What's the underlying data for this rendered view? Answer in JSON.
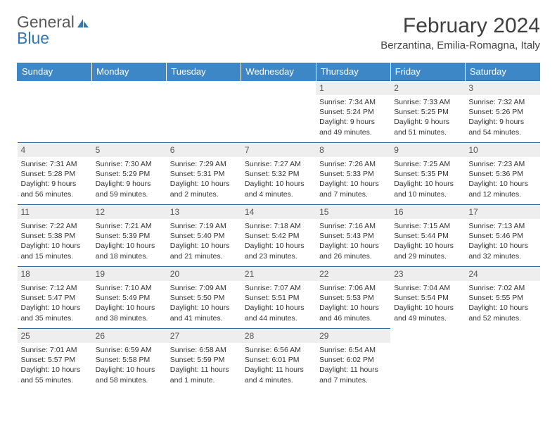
{
  "logo": {
    "text1": "General",
    "text2": "Blue"
  },
  "title": "February 2024",
  "location": "Berzantina, Emilia-Romagna, Italy",
  "colors": {
    "header_bg": "#3e87c6",
    "header_text": "#ffffff",
    "daynum_bg": "#eeeeee",
    "rule": "#2f6fa8",
    "logo_gray": "#595959",
    "logo_blue": "#2f77b9"
  },
  "weekdays": [
    "Sunday",
    "Monday",
    "Tuesday",
    "Wednesday",
    "Thursday",
    "Friday",
    "Saturday"
  ],
  "weeks": [
    [
      null,
      null,
      null,
      null,
      {
        "num": "1",
        "sunrise": "7:34 AM",
        "sunset": "5:24 PM",
        "daylight": "9 hours and 49 minutes."
      },
      {
        "num": "2",
        "sunrise": "7:33 AM",
        "sunset": "5:25 PM",
        "daylight": "9 hours and 51 minutes."
      },
      {
        "num": "3",
        "sunrise": "7:32 AM",
        "sunset": "5:26 PM",
        "daylight": "9 hours and 54 minutes."
      }
    ],
    [
      {
        "num": "4",
        "sunrise": "7:31 AM",
        "sunset": "5:28 PM",
        "daylight": "9 hours and 56 minutes."
      },
      {
        "num": "5",
        "sunrise": "7:30 AM",
        "sunset": "5:29 PM",
        "daylight": "9 hours and 59 minutes."
      },
      {
        "num": "6",
        "sunrise": "7:29 AM",
        "sunset": "5:31 PM",
        "daylight": "10 hours and 2 minutes."
      },
      {
        "num": "7",
        "sunrise": "7:27 AM",
        "sunset": "5:32 PM",
        "daylight": "10 hours and 4 minutes."
      },
      {
        "num": "8",
        "sunrise": "7:26 AM",
        "sunset": "5:33 PM",
        "daylight": "10 hours and 7 minutes."
      },
      {
        "num": "9",
        "sunrise": "7:25 AM",
        "sunset": "5:35 PM",
        "daylight": "10 hours and 10 minutes."
      },
      {
        "num": "10",
        "sunrise": "7:23 AM",
        "sunset": "5:36 PM",
        "daylight": "10 hours and 12 minutes."
      }
    ],
    [
      {
        "num": "11",
        "sunrise": "7:22 AM",
        "sunset": "5:38 PM",
        "daylight": "10 hours and 15 minutes."
      },
      {
        "num": "12",
        "sunrise": "7:21 AM",
        "sunset": "5:39 PM",
        "daylight": "10 hours and 18 minutes."
      },
      {
        "num": "13",
        "sunrise": "7:19 AM",
        "sunset": "5:40 PM",
        "daylight": "10 hours and 21 minutes."
      },
      {
        "num": "14",
        "sunrise": "7:18 AM",
        "sunset": "5:42 PM",
        "daylight": "10 hours and 23 minutes."
      },
      {
        "num": "15",
        "sunrise": "7:16 AM",
        "sunset": "5:43 PM",
        "daylight": "10 hours and 26 minutes."
      },
      {
        "num": "16",
        "sunrise": "7:15 AM",
        "sunset": "5:44 PM",
        "daylight": "10 hours and 29 minutes."
      },
      {
        "num": "17",
        "sunrise": "7:13 AM",
        "sunset": "5:46 PM",
        "daylight": "10 hours and 32 minutes."
      }
    ],
    [
      {
        "num": "18",
        "sunrise": "7:12 AM",
        "sunset": "5:47 PM",
        "daylight": "10 hours and 35 minutes."
      },
      {
        "num": "19",
        "sunrise": "7:10 AM",
        "sunset": "5:49 PM",
        "daylight": "10 hours and 38 minutes."
      },
      {
        "num": "20",
        "sunrise": "7:09 AM",
        "sunset": "5:50 PM",
        "daylight": "10 hours and 41 minutes."
      },
      {
        "num": "21",
        "sunrise": "7:07 AM",
        "sunset": "5:51 PM",
        "daylight": "10 hours and 44 minutes."
      },
      {
        "num": "22",
        "sunrise": "7:06 AM",
        "sunset": "5:53 PM",
        "daylight": "10 hours and 46 minutes."
      },
      {
        "num": "23",
        "sunrise": "7:04 AM",
        "sunset": "5:54 PM",
        "daylight": "10 hours and 49 minutes."
      },
      {
        "num": "24",
        "sunrise": "7:02 AM",
        "sunset": "5:55 PM",
        "daylight": "10 hours and 52 minutes."
      }
    ],
    [
      {
        "num": "25",
        "sunrise": "7:01 AM",
        "sunset": "5:57 PM",
        "daylight": "10 hours and 55 minutes."
      },
      {
        "num": "26",
        "sunrise": "6:59 AM",
        "sunset": "5:58 PM",
        "daylight": "10 hours and 58 minutes."
      },
      {
        "num": "27",
        "sunrise": "6:58 AM",
        "sunset": "5:59 PM",
        "daylight": "11 hours and 1 minute."
      },
      {
        "num": "28",
        "sunrise": "6:56 AM",
        "sunset": "6:01 PM",
        "daylight": "11 hours and 4 minutes."
      },
      {
        "num": "29",
        "sunrise": "6:54 AM",
        "sunset": "6:02 PM",
        "daylight": "11 hours and 7 minutes."
      },
      null,
      null
    ]
  ],
  "labels": {
    "sunrise": "Sunrise:",
    "sunset": "Sunset:",
    "daylight": "Daylight:"
  }
}
